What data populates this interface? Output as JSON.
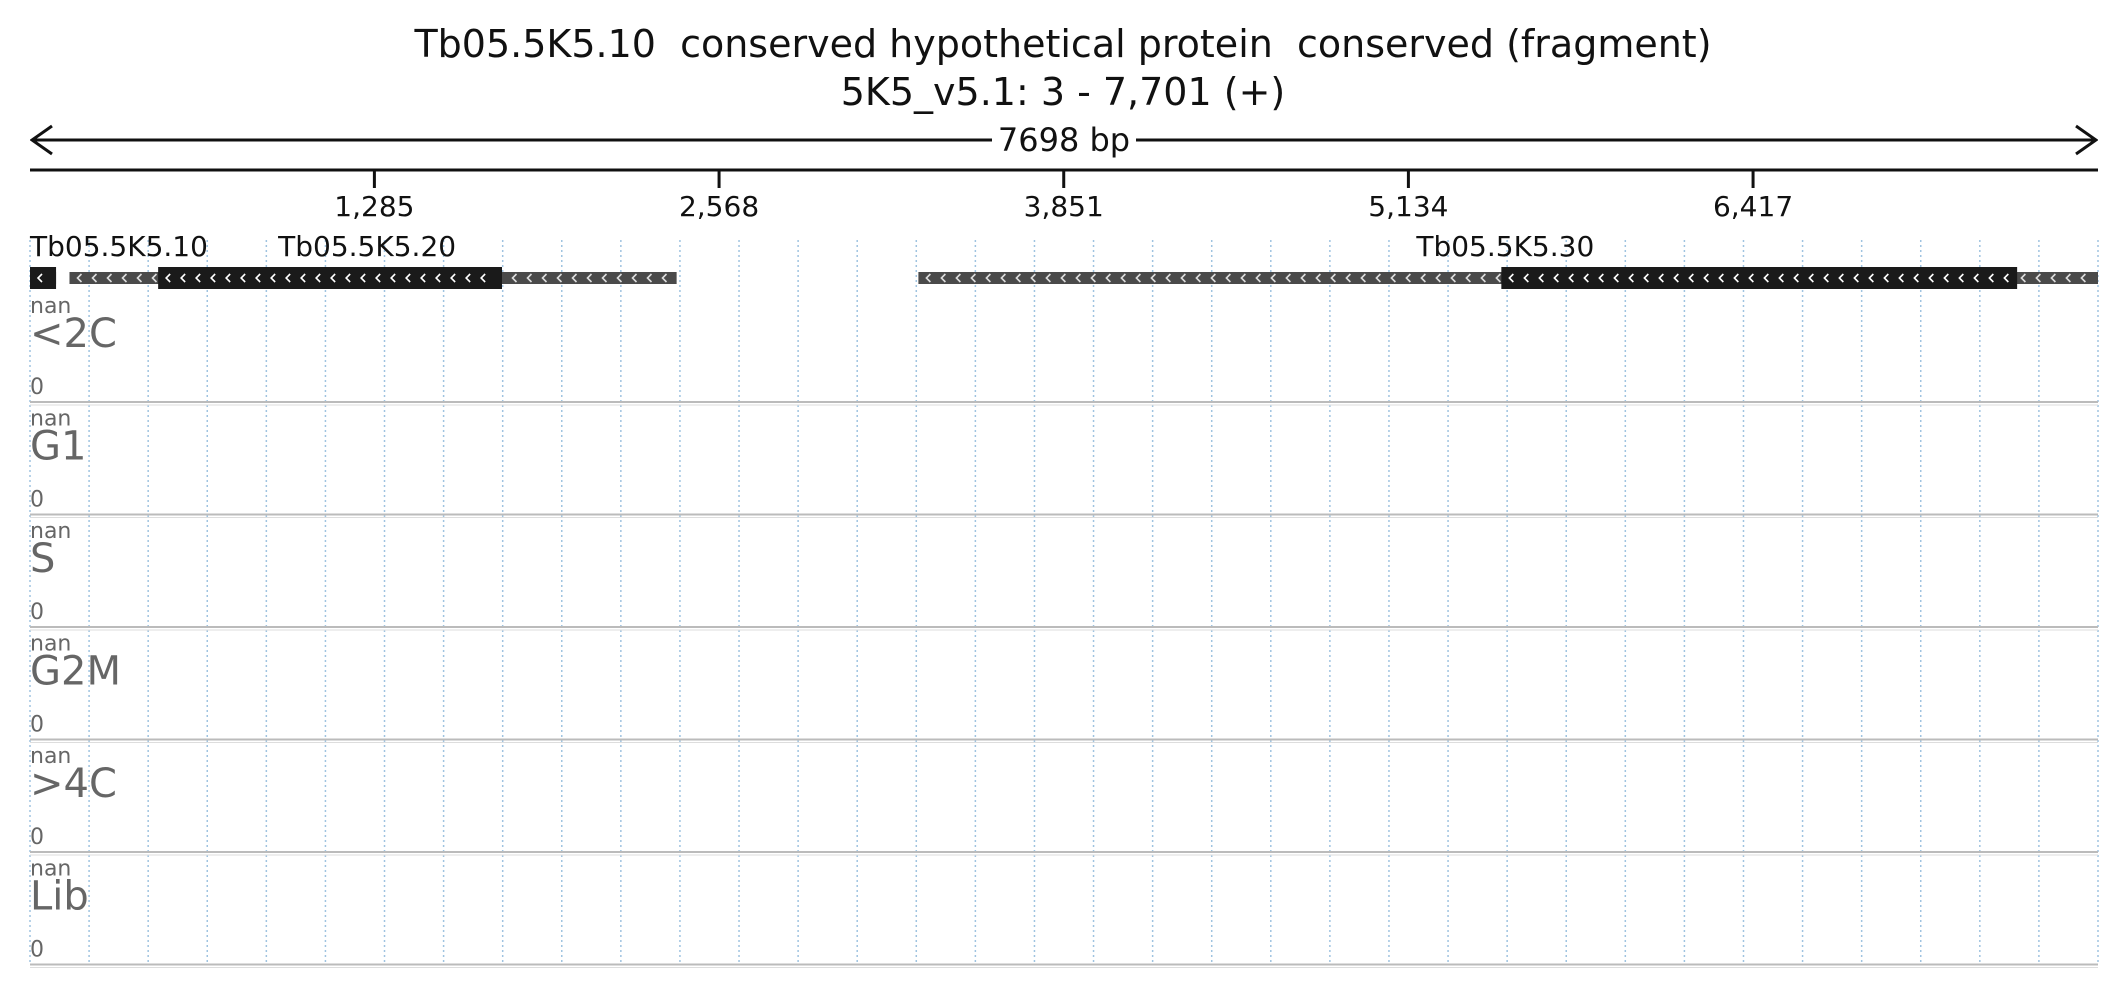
{
  "header": {
    "title": "Tb05.5K5.10  conserved hypothetical protein  conserved (fragment)",
    "subtitle": "5K5_v5.1: 3 - 7,701 (+)",
    "length_label": "7698 bp"
  },
  "axis": {
    "start": 3,
    "end": 7701,
    "ticks": [
      {
        "value": 1285,
        "label": "1,285"
      },
      {
        "value": 2568,
        "label": "2,568"
      },
      {
        "value": 3851,
        "label": "3,851"
      },
      {
        "value": 5134,
        "label": "5,134"
      },
      {
        "value": 6417,
        "label": "6,417"
      }
    ]
  },
  "genes": [
    {
      "name": "Tb05.5K5.10",
      "label": "Tb05.5K5.10",
      "strand": "-",
      "transcript": [
        3,
        100
      ],
      "cds": [
        3,
        100
      ]
    },
    {
      "name": "Tb05.5K5.20",
      "label": "Tb05.5K5.20",
      "strand": "-",
      "transcript": [
        150,
        2410
      ],
      "cds": [
        480,
        1760
      ]
    },
    {
      "name": "Tb05.5K5.30",
      "label": "Tb05.5K5.30",
      "strand": "-",
      "transcript": [
        3310,
        7701
      ],
      "cds": [
        5480,
        7400
      ]
    }
  ],
  "tracks": [
    {
      "name": "<2C",
      "max_label": "nan",
      "min_label": "0"
    },
    {
      "name": "G1",
      "max_label": "nan",
      "min_label": "0"
    },
    {
      "name": "S",
      "max_label": "nan",
      "min_label": "0"
    },
    {
      "name": "G2M",
      "max_label": "nan",
      "min_label": "0"
    },
    {
      "name": ">4C",
      "max_label": "nan",
      "min_label": "0"
    },
    {
      "name": "Lib",
      "max_label": "nan",
      "min_label": "0"
    }
  ],
  "colors": {
    "cds": "#1a1a1a",
    "utr": "#4a4a4a",
    "grid": "#9fc3e0",
    "track_border": "#bbbbbb",
    "text": "#111111",
    "track_text": "#666666"
  }
}
